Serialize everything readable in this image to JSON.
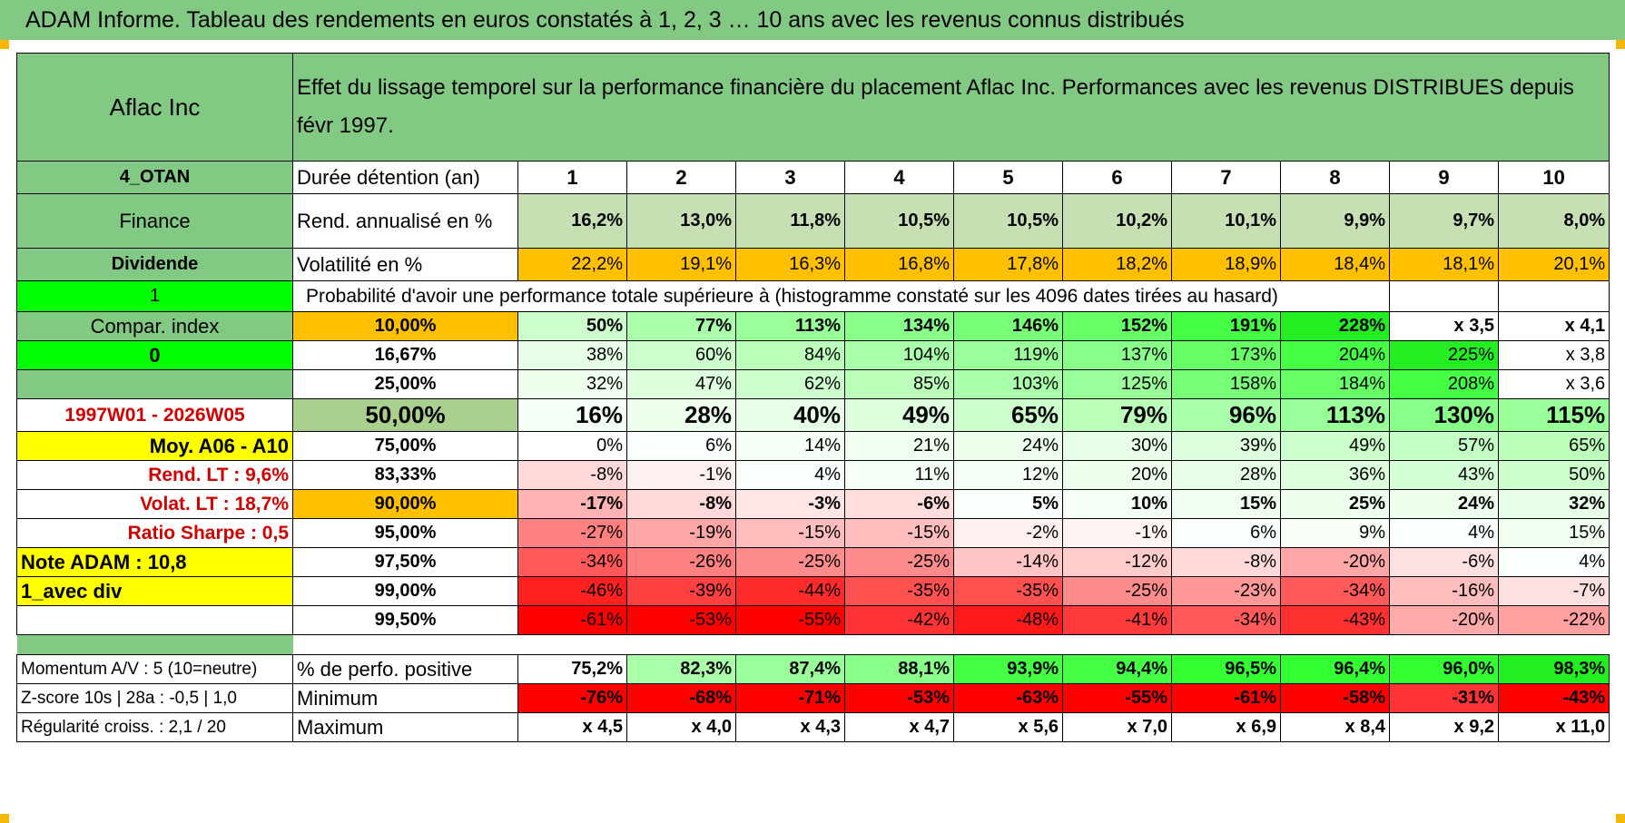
{
  "title": "ADAM Informe. Tableau des rendements en euros constatés à 1, 2, 3 … 10 ans avec les revenus connus distribués",
  "colors": {
    "title_bg": "#82c983",
    "header_bg": "#82c983",
    "left_col_bg": "#82c983",
    "yellow": "#ffff00",
    "orange": "#ffc000",
    "bright_green": "#00ff00",
    "light_green_header": "#c6e0b4",
    "corner": "#f5b800"
  },
  "left_panel": {
    "company": "Aflac Inc",
    "code": "4_OTAN",
    "sector": "Finance",
    "category": "Dividende",
    "flag_1": "1",
    "compar_index": "Compar. index",
    "flag_0": "0",
    "blank": "",
    "period": "1997W01 - 2026W05",
    "moy": "Moy. A06 - A10",
    "rend_lt": "Rend. LT :    9,6%",
    "volat_lt": "Volat. LT :    18,7%",
    "sharpe": "Ratio Sharpe :     0,5",
    "note_adam": "Note ADAM : 10,8",
    "avec_div": "1_avec div"
  },
  "header": {
    "description": "Effet du lissage temporel sur la performance financière du placement Aflac Inc. Performances avec les revenus DISTRIBUES depuis févr 1997."
  },
  "years_row": {
    "label": "Durée détention (an)",
    "values": [
      "1",
      "2",
      "3",
      "4",
      "5",
      "6",
      "7",
      "8",
      "9",
      "10"
    ]
  },
  "rend_row": {
    "label": "Rend. annualisé en %",
    "values": [
      "16,2%",
      "13,0%",
      "11,8%",
      "10,5%",
      "10,5%",
      "10,2%",
      "10,1%",
      "9,9%",
      "9,7%",
      "8,0%"
    ]
  },
  "vol_row": {
    "label": "Volatilité en %",
    "values": [
      "22,2%",
      "19,1%",
      "16,3%",
      "16,8%",
      "17,8%",
      "18,2%",
      "18,9%",
      "18,4%",
      "18,1%",
      "20,1%"
    ]
  },
  "proba_title": "Probabilité d'avoir une performance totale supérieure à (histogramme constaté sur les 4096 dates tirées au hasard)",
  "proba_rows": [
    {
      "pct": "10,00%",
      "values": [
        "50%",
        "77%",
        "113%",
        "134%",
        "146%",
        "152%",
        "191%",
        "228%",
        "x 3,5",
        "x 4,1"
      ],
      "bold": true,
      "big": false,
      "pct_bg": "#ffc000",
      "bgs": [
        "#ccffcc",
        "#aaffaa",
        "#99ff99",
        "#88ff88",
        "#77ff77",
        "#66ff66",
        "#44ff44",
        "#22ee22",
        "#ffffff",
        "#ffffff"
      ]
    },
    {
      "pct": "16,67%",
      "values": [
        "38%",
        "60%",
        "84%",
        "104%",
        "119%",
        "137%",
        "173%",
        "204%",
        "225%",
        "x 3,8"
      ],
      "bold": false,
      "big": false,
      "pct_bg": "#ffffff",
      "bgs": [
        "#e6ffe6",
        "#ccffcc",
        "#bbffbb",
        "#aaffaa",
        "#99ff99",
        "#88ff88",
        "#66ff66",
        "#44ff44",
        "#22ee22",
        "#ffffff"
      ]
    },
    {
      "pct": "25,00%",
      "values": [
        "32%",
        "47%",
        "62%",
        "85%",
        "103%",
        "125%",
        "158%",
        "184%",
        "208%",
        "x 3,6"
      ],
      "bold": false,
      "big": false,
      "pct_bg": "#ffffff",
      "bgs": [
        "#eeffee",
        "#ddffdd",
        "#ccffcc",
        "#bbffbb",
        "#aaffaa",
        "#99ff99",
        "#77ff77",
        "#66ff66",
        "#44ff44",
        "#ffffff"
      ]
    },
    {
      "pct": "50,00%",
      "values": [
        "16%",
        "28%",
        "40%",
        "49%",
        "65%",
        "79%",
        "96%",
        "113%",
        "130%",
        "115%"
      ],
      "bold": true,
      "big": true,
      "pct_bg": "#a9d08e",
      "bgs": [
        "#f5fff5",
        "#eeffee",
        "#e6ffe6",
        "#ddffdd",
        "#ccffcc",
        "#bbffbb",
        "#aaffaa",
        "#99ff99",
        "#88ff88",
        "#99ff99"
      ]
    },
    {
      "pct": "75,00%",
      "values": [
        "0%",
        "6%",
        "14%",
        "21%",
        "24%",
        "30%",
        "39%",
        "49%",
        "57%",
        "65%"
      ],
      "bold": false,
      "big": false,
      "pct_bg": "#ffffff",
      "bgs": [
        "#ffffff",
        "#fbfffb",
        "#f5fff5",
        "#f0fff0",
        "#eeffee",
        "#e6ffe6",
        "#ddffdd",
        "#ccffcc",
        "#c4ffc4",
        "#bbffbb"
      ]
    },
    {
      "pct": "83,33%",
      "values": [
        "-8%",
        "-1%",
        "4%",
        "11%",
        "12%",
        "20%",
        "28%",
        "36%",
        "43%",
        "50%"
      ],
      "bold": false,
      "big": false,
      "pct_bg": "#ffffff",
      "bgs": [
        "#ffd9d9",
        "#fff0f0",
        "#fbfffb",
        "#f5fff5",
        "#f5fff5",
        "#eeffee",
        "#e6ffe6",
        "#ddffdd",
        "#d5ffd5",
        "#ccffcc"
      ]
    },
    {
      "pct": "90,00%",
      "values": [
        "-17%",
        "-8%",
        "-3%",
        "-6%",
        "5%",
        "10%",
        "15%",
        "25%",
        "24%",
        "32%"
      ],
      "bold": true,
      "big": false,
      "pct_bg": "#ffc000",
      "bgs": [
        "#ffb3b3",
        "#ffd9d9",
        "#ffe6e6",
        "#ffdddd",
        "#fbfffb",
        "#f5fff5",
        "#f0fff0",
        "#eeffee",
        "#eeffee",
        "#e6ffe6"
      ]
    },
    {
      "pct": "95,00%",
      "values": [
        "-27%",
        "-19%",
        "-15%",
        "-15%",
        "-2%",
        "-1%",
        "6%",
        "9%",
        "4%",
        "15%"
      ],
      "bold": false,
      "big": false,
      "pct_bg": "#ffffff",
      "bgs": [
        "#ff8080",
        "#ffa6a6",
        "#ffbdbd",
        "#ffbdbd",
        "#fff0f0",
        "#fff5f5",
        "#fbfffb",
        "#f7fff7",
        "#fbfffb",
        "#f0fff0"
      ]
    },
    {
      "pct": "97,50%",
      "values": [
        "-34%",
        "-26%",
        "-25%",
        "-25%",
        "-14%",
        "-12%",
        "-8%",
        "-20%",
        "-6%",
        "4%"
      ],
      "bold": false,
      "big": false,
      "pct_bg": "#ffffff",
      "bgs": [
        "#ff5959",
        "#ff8080",
        "#ff8c8c",
        "#ff8c8c",
        "#ffc4c4",
        "#ffcccc",
        "#ffd9d9",
        "#ffa6a6",
        "#ffe0e0",
        "#fbfffb"
      ]
    },
    {
      "pct": "99,00%",
      "values": [
        "-46%",
        "-39%",
        "-44%",
        "-35%",
        "-35%",
        "-25%",
        "-23%",
        "-34%",
        "-16%",
        "-7%"
      ],
      "bold": false,
      "big": false,
      "pct_bg": "#ffffff",
      "bgs": [
        "#ff2020",
        "#ff4040",
        "#ff2a2a",
        "#ff5050",
        "#ff5050",
        "#ff8c8c",
        "#ff9999",
        "#ff5959",
        "#ffbdbd",
        "#ffe0e0"
      ]
    },
    {
      "pct": "99,50%",
      "values": [
        "-61%",
        "-53%",
        "-55%",
        "-42%",
        "-48%",
        "-41%",
        "-34%",
        "-43%",
        "-20%",
        "-22%"
      ],
      "bold": false,
      "big": false,
      "pct_bg": "#ffffff",
      "bgs": [
        "#ff0000",
        "#ff0000",
        "#ff0000",
        "#ff3333",
        "#ff1a1a",
        "#ff3a3a",
        "#ff5959",
        "#ff3030",
        "#ffaaaa",
        "#ffa0a0"
      ]
    }
  ],
  "bottom": {
    "momentum": "Momentum A/V : 5 (10=neutre)",
    "zscore": "Z-score 10s | 28a : -0,5 | 1,0",
    "regularite": "Régularité croiss. : 2,1 / 20",
    "rows": [
      {
        "label": "% de perfo. positive",
        "values": [
          "75,2%",
          "82,3%",
          "87,4%",
          "88,1%",
          "93,9%",
          "94,4%",
          "96,5%",
          "96,4%",
          "96,0%",
          "98,3%"
        ],
        "bgs": [
          "#ffffff",
          "#aaffaa",
          "#99ff99",
          "#88ff88",
          "#44ff44",
          "#44ff44",
          "#33ff33",
          "#33ff33",
          "#33ff33",
          "#22ee22"
        ]
      },
      {
        "label": "Minimum",
        "values": [
          "-76%",
          "-68%",
          "-71%",
          "-53%",
          "-63%",
          "-55%",
          "-61%",
          "-58%",
          "-31%",
          "-43%"
        ],
        "bgs": [
          "#ff0000",
          "#ff0000",
          "#ff0000",
          "#ff0000",
          "#ff0000",
          "#ff0000",
          "#ff0000",
          "#ff0000",
          "#ff3333",
          "#ff0000"
        ]
      },
      {
        "label": "Maximum",
        "values": [
          "x 4,5",
          "x 4,0",
          "x 4,3",
          "x 4,7",
          "x 5,6",
          "x 7,0",
          "x 6,9",
          "x 8,4",
          "x 9,2",
          "x 11,0"
        ],
        "bgs": [
          "#ffffff",
          "#ffffff",
          "#ffffff",
          "#ffffff",
          "#ffffff",
          "#ffffff",
          "#ffffff",
          "#ffffff",
          "#ffffff",
          "#ffffff"
        ]
      }
    ]
  }
}
